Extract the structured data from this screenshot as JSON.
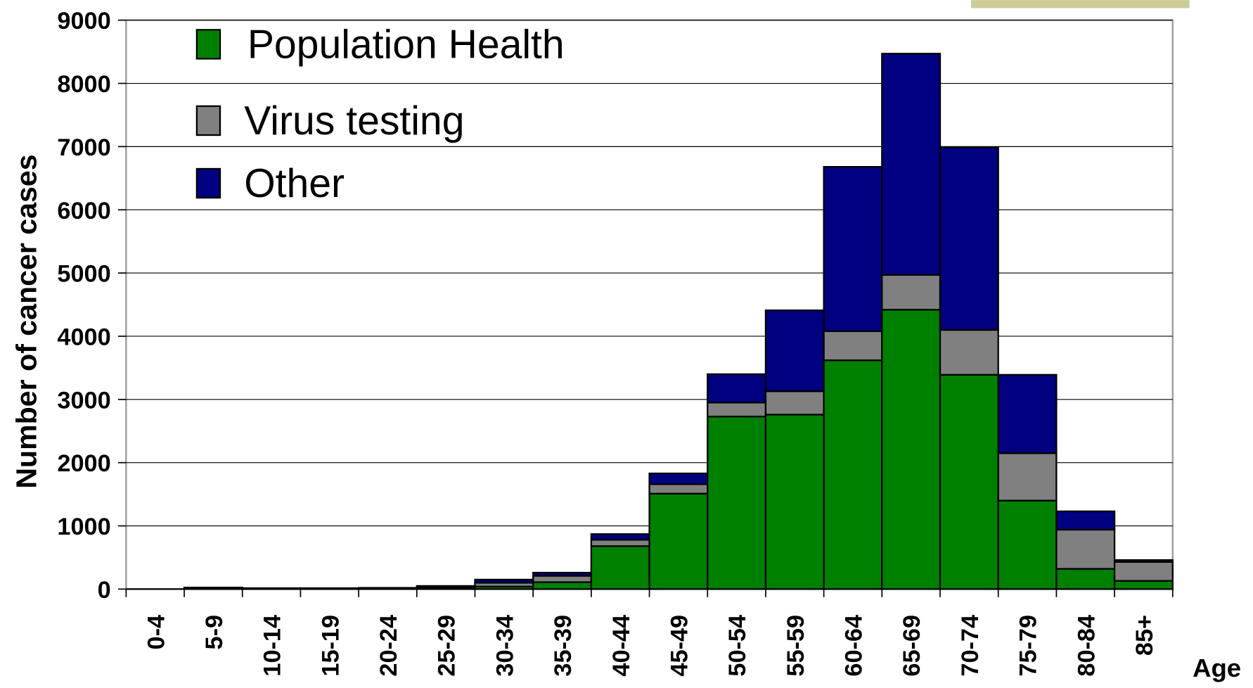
{
  "chart_data": {
    "type": "bar",
    "stacked": true,
    "y_label": "Number of cancer cases",
    "x_label": "Age",
    "categories": [
      "0-4",
      "5-9",
      "10-14",
      "15-19",
      "20-24",
      "25-29",
      "30-34",
      "35-39",
      "40-44",
      "45-49",
      "50-54",
      "55-59",
      "60-64",
      "65-69",
      "70-74",
      "75-79",
      "80-84",
      "85+"
    ],
    "series": [
      {
        "name": "Population Health",
        "color": "#008000",
        "values": [
          0,
          10,
          5,
          5,
          5,
          10,
          40,
          110,
          680,
          1510,
          2730,
          2760,
          3620,
          4420,
          3390,
          1400,
          320,
          130
        ]
      },
      {
        "name": "Virus testing",
        "color": "#808080",
        "values": [
          0,
          5,
          5,
          5,
          5,
          20,
          60,
          100,
          100,
          150,
          220,
          370,
          460,
          550,
          710,
          750,
          620,
          300
        ]
      },
      {
        "name": "Other",
        "color": "#000080",
        "values": [
          0,
          10,
          5,
          5,
          10,
          20,
          50,
          50,
          90,
          170,
          450,
          1280,
          2600,
          3500,
          2890,
          1240,
          290,
          30
        ]
      }
    ],
    "ylim": [
      0,
      9000
    ],
    "yticks": [
      0,
      1000,
      2000,
      3000,
      4000,
      5000,
      6000,
      7000,
      8000,
      9000
    ],
    "grid": true
  }
}
